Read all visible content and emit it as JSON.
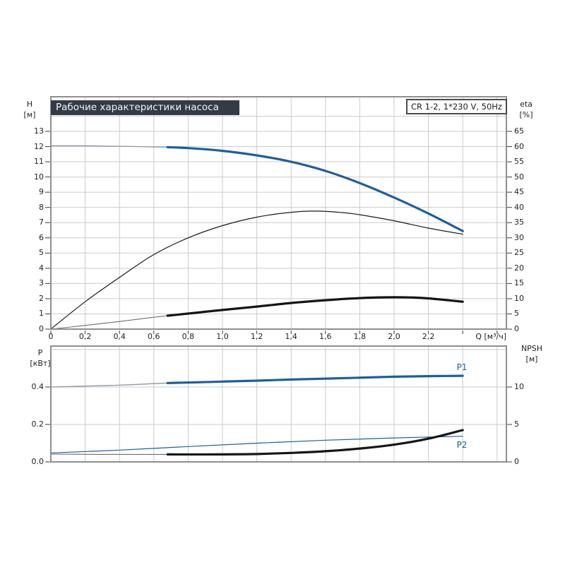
{
  "header": {
    "title": "Рабочие характеристики насоса",
    "model": "CR 1-2, 1*230 V, 50Hz"
  },
  "colors": {
    "blue": "#1f5e9e",
    "black": "#151515",
    "thin_gray": "#8b96a1",
    "thin_dark": "#6e6e6e",
    "grid": "#cbcbcb",
    "border": "#8f8f8f",
    "tick": "#3c3c3c",
    "title_bg": "#333b46",
    "title_fg": "#f4f6f8"
  },
  "top_chart": {
    "y_left": {
      "name": "H",
      "unit": "[м]",
      "ticks": [
        "0",
        "1",
        "2",
        "3",
        "4",
        "5",
        "6",
        "7",
        "8",
        "9",
        "10",
        "11",
        "12",
        "13"
      ]
    },
    "y_right": {
      "name": "eta",
      "unit": "[%]",
      "ticks": [
        "0",
        "5",
        "10",
        "15",
        "20",
        "25",
        "30",
        "35",
        "40",
        "45",
        "50",
        "55",
        "60",
        "65"
      ]
    },
    "x": {
      "ticks": [
        "0",
        "0,2",
        "0,4",
        "0,6",
        "0,8",
        "1,0",
        "1,2",
        "1,4",
        "1,6",
        "1,8",
        "2,0",
        "2,2"
      ],
      "axis_label": "Q [м³/ч]"
    }
  },
  "bottom_chart": {
    "y_left": {
      "name": "P",
      "unit": "[кВт]",
      "ticks": [
        "0.0",
        "0.2",
        "0.4"
      ]
    },
    "y_right": {
      "name": "NPSH",
      "unit": "[м]",
      "ticks": [
        "0",
        "5",
        "10"
      ]
    },
    "labels": {
      "p1": "P1",
      "p2": "P2"
    }
  },
  "chart_data": [
    {
      "type": "line",
      "title": "Рабочие характеристики насоса",
      "annotation": "CR 1-2, 1*230 V, 50Hz",
      "xlabel": "Q [м³/ч]",
      "x_range": [
        0,
        2.65
      ],
      "x_tick_step": 0.2,
      "grid": true,
      "y_left": {
        "label": "H [м]",
        "range": [
          0,
          15.3
        ],
        "tick_max": 13,
        "tick_step": 1
      },
      "y_right": {
        "label": "eta [%]",
        "range": [
          0,
          76.5
        ],
        "tick_max": 65,
        "tick_step": 5
      },
      "series": [
        {
          "name": "QH",
          "axis": "left",
          "points": [
            [
              0,
              12.05
            ],
            [
              0.2,
              12.05
            ],
            [
              0.4,
              12.02
            ],
            [
              0.6,
              11.98
            ],
            [
              0.68,
              11.96
            ],
            [
              0.8,
              11.9
            ],
            [
              1.0,
              11.72
            ],
            [
              1.2,
              11.42
            ],
            [
              1.4,
              11.0
            ],
            [
              1.6,
              10.4
            ],
            [
              1.8,
              9.6
            ],
            [
              2.0,
              8.65
            ],
            [
              2.2,
              7.6
            ],
            [
              2.4,
              6.45
            ]
          ],
          "strokes": [
            {
              "color": "#8b96a1",
              "width": 1.3
            },
            {
              "color": "#1f5e9e",
              "width": 3.2,
              "from": 0.68
            }
          ]
        },
        {
          "name": "eta",
          "axis": "right",
          "points": [
            [
              0,
              0
            ],
            [
              0.2,
              9
            ],
            [
              0.4,
              17
            ],
            [
              0.6,
              24.5
            ],
            [
              0.8,
              30
            ],
            [
              1.0,
              34
            ],
            [
              1.2,
              36.8
            ],
            [
              1.4,
              38.4
            ],
            [
              1.55,
              38.8
            ],
            [
              1.7,
              38.3
            ],
            [
              1.8,
              37.6
            ],
            [
              2.0,
              35.6
            ],
            [
              2.2,
              33.2
            ],
            [
              2.4,
              31.2
            ]
          ],
          "strokes": [
            {
              "color": "#1a1a1a",
              "width": 1.2
            }
          ]
        },
        {
          "name": "eta_total",
          "axis": "right",
          "points": [
            [
              0,
              0
            ],
            [
              0.2,
              1.2
            ],
            [
              0.4,
              2.5
            ],
            [
              0.6,
              3.9
            ],
            [
              0.68,
              4.4
            ],
            [
              0.8,
              5.1
            ],
            [
              1.0,
              6.3
            ],
            [
              1.2,
              7.4
            ],
            [
              1.4,
              8.6
            ],
            [
              1.6,
              9.5
            ],
            [
              1.8,
              10.2
            ],
            [
              1.95,
              10.45
            ],
            [
              2.1,
              10.4
            ],
            [
              2.2,
              10.1
            ],
            [
              2.4,
              9.0
            ]
          ],
          "strokes": [
            {
              "color": "#6e6e6e",
              "width": 1.1
            },
            {
              "color": "#151515",
              "width": 3.2,
              "from": 0.68
            }
          ]
        }
      ]
    },
    {
      "type": "line",
      "x_range": [
        0,
        2.65
      ],
      "grid": true,
      "y_left": {
        "label": "P [кВт]",
        "range": [
          0,
          0.62
        ],
        "tick_max": 0.4,
        "tick_step": 0.2
      },
      "y_right": {
        "label": "NPSH [м]",
        "range": [
          0,
          15.5
        ],
        "tick_max": 10,
        "tick_step": 5
      },
      "series": [
        {
          "name": "P1",
          "axis": "left",
          "points": [
            [
              0,
              0.4
            ],
            [
              0.2,
              0.405
            ],
            [
              0.4,
              0.41
            ],
            [
              0.6,
              0.418
            ],
            [
              0.68,
              0.421
            ],
            [
              0.8,
              0.424
            ],
            [
              1.0,
              0.429
            ],
            [
              1.2,
              0.434
            ],
            [
              1.4,
              0.44
            ],
            [
              1.6,
              0.445
            ],
            [
              1.8,
              0.45
            ],
            [
              2.0,
              0.455
            ],
            [
              2.2,
              0.458
            ],
            [
              2.4,
              0.46
            ]
          ],
          "strokes": [
            {
              "color": "#8b96a1",
              "width": 1.3
            },
            {
              "color": "#1f5e9e",
              "width": 3.2,
              "from": 0.68
            }
          ]
        },
        {
          "name": "P2",
          "axis": "left",
          "points": [
            [
              0,
              0.048
            ],
            [
              0.4,
              0.063
            ],
            [
              0.8,
              0.082
            ],
            [
              1.2,
              0.1
            ],
            [
              1.6,
              0.116
            ],
            [
              2.0,
              0.128
            ],
            [
              2.4,
              0.137
            ]
          ],
          "strokes": [
            {
              "color": "#1f5e9e",
              "width": 1.2
            }
          ]
        },
        {
          "name": "NPSH",
          "axis": "right",
          "points": [
            [
              0,
              1.05
            ],
            [
              0.3,
              1.0
            ],
            [
              0.68,
              1.0
            ],
            [
              1.0,
              1.0
            ],
            [
              1.2,
              1.05
            ],
            [
              1.4,
              1.2
            ],
            [
              1.6,
              1.42
            ],
            [
              1.8,
              1.78
            ],
            [
              2.0,
              2.3
            ],
            [
              2.2,
              3.1
            ],
            [
              2.4,
              4.25
            ]
          ],
          "strokes": [
            {
              "color": "#6e6e6e",
              "width": 1.1
            },
            {
              "color": "#151515",
              "width": 3.2,
              "from": 0.68
            }
          ]
        }
      ]
    }
  ]
}
